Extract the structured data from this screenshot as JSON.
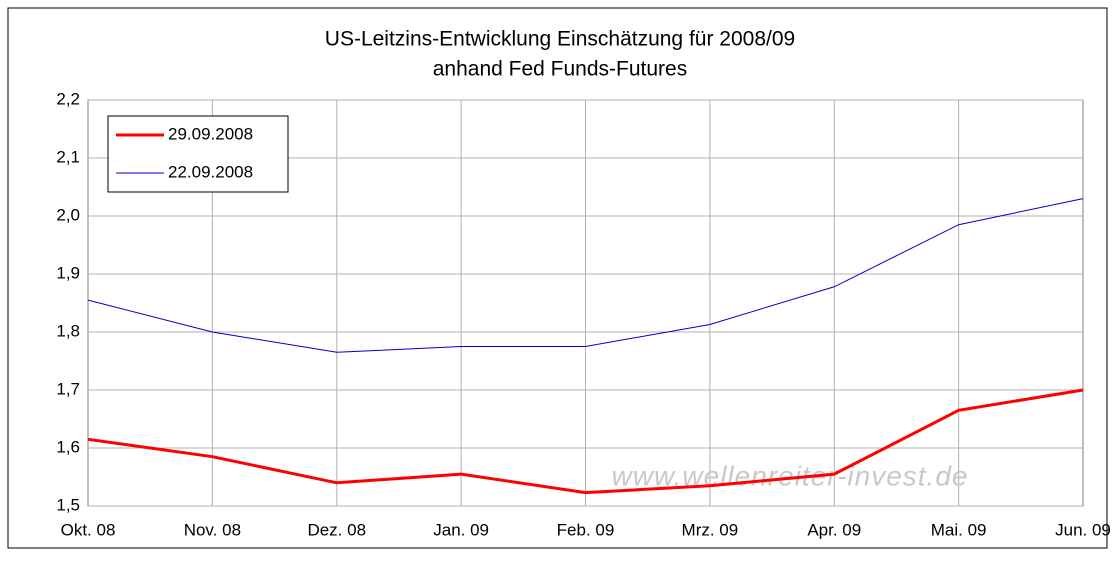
{
  "chart_data": {
    "type": "line",
    "title": "US-Leitzins-Entwicklung Einschätzung für 2008/09",
    "subtitle": "anhand Fed Funds-Futures",
    "annotation": "www.wellenreiter-invest.de",
    "categories": [
      "Okt. 08",
      "Nov. 08",
      "Dez. 08",
      "Jan. 09",
      "Feb. 09",
      "Mrz. 09",
      "Apr. 09",
      "Mai. 09",
      "Jun. 09"
    ],
    "series": [
      {
        "name": "29.09.2008",
        "color": "#ff0000",
        "width": 3,
        "values": [
          1.615,
          1.585,
          1.54,
          1.555,
          1.523,
          1.535,
          1.555,
          1.665,
          1.7
        ]
      },
      {
        "name": "22.09.2008",
        "color": "#0000cc",
        "width": 1,
        "values": [
          1.855,
          1.8,
          1.765,
          1.775,
          1.775,
          1.813,
          1.878,
          1.985,
          2.03
        ]
      }
    ],
    "ylim": [
      1.5,
      2.2
    ],
    "yticks": [
      {
        "value": 1.5,
        "label": "1,5"
      },
      {
        "value": 1.6,
        "label": "1,6"
      },
      {
        "value": 1.7,
        "label": "1,7"
      },
      {
        "value": 1.8,
        "label": "1,8"
      },
      {
        "value": 1.9,
        "label": "1,9"
      },
      {
        "value": 2.0,
        "label": "2,0"
      },
      {
        "value": 2.1,
        "label": "2,1"
      },
      {
        "value": 2.2,
        "label": "2,2"
      }
    ],
    "grid": true,
    "legend": "upper left"
  }
}
